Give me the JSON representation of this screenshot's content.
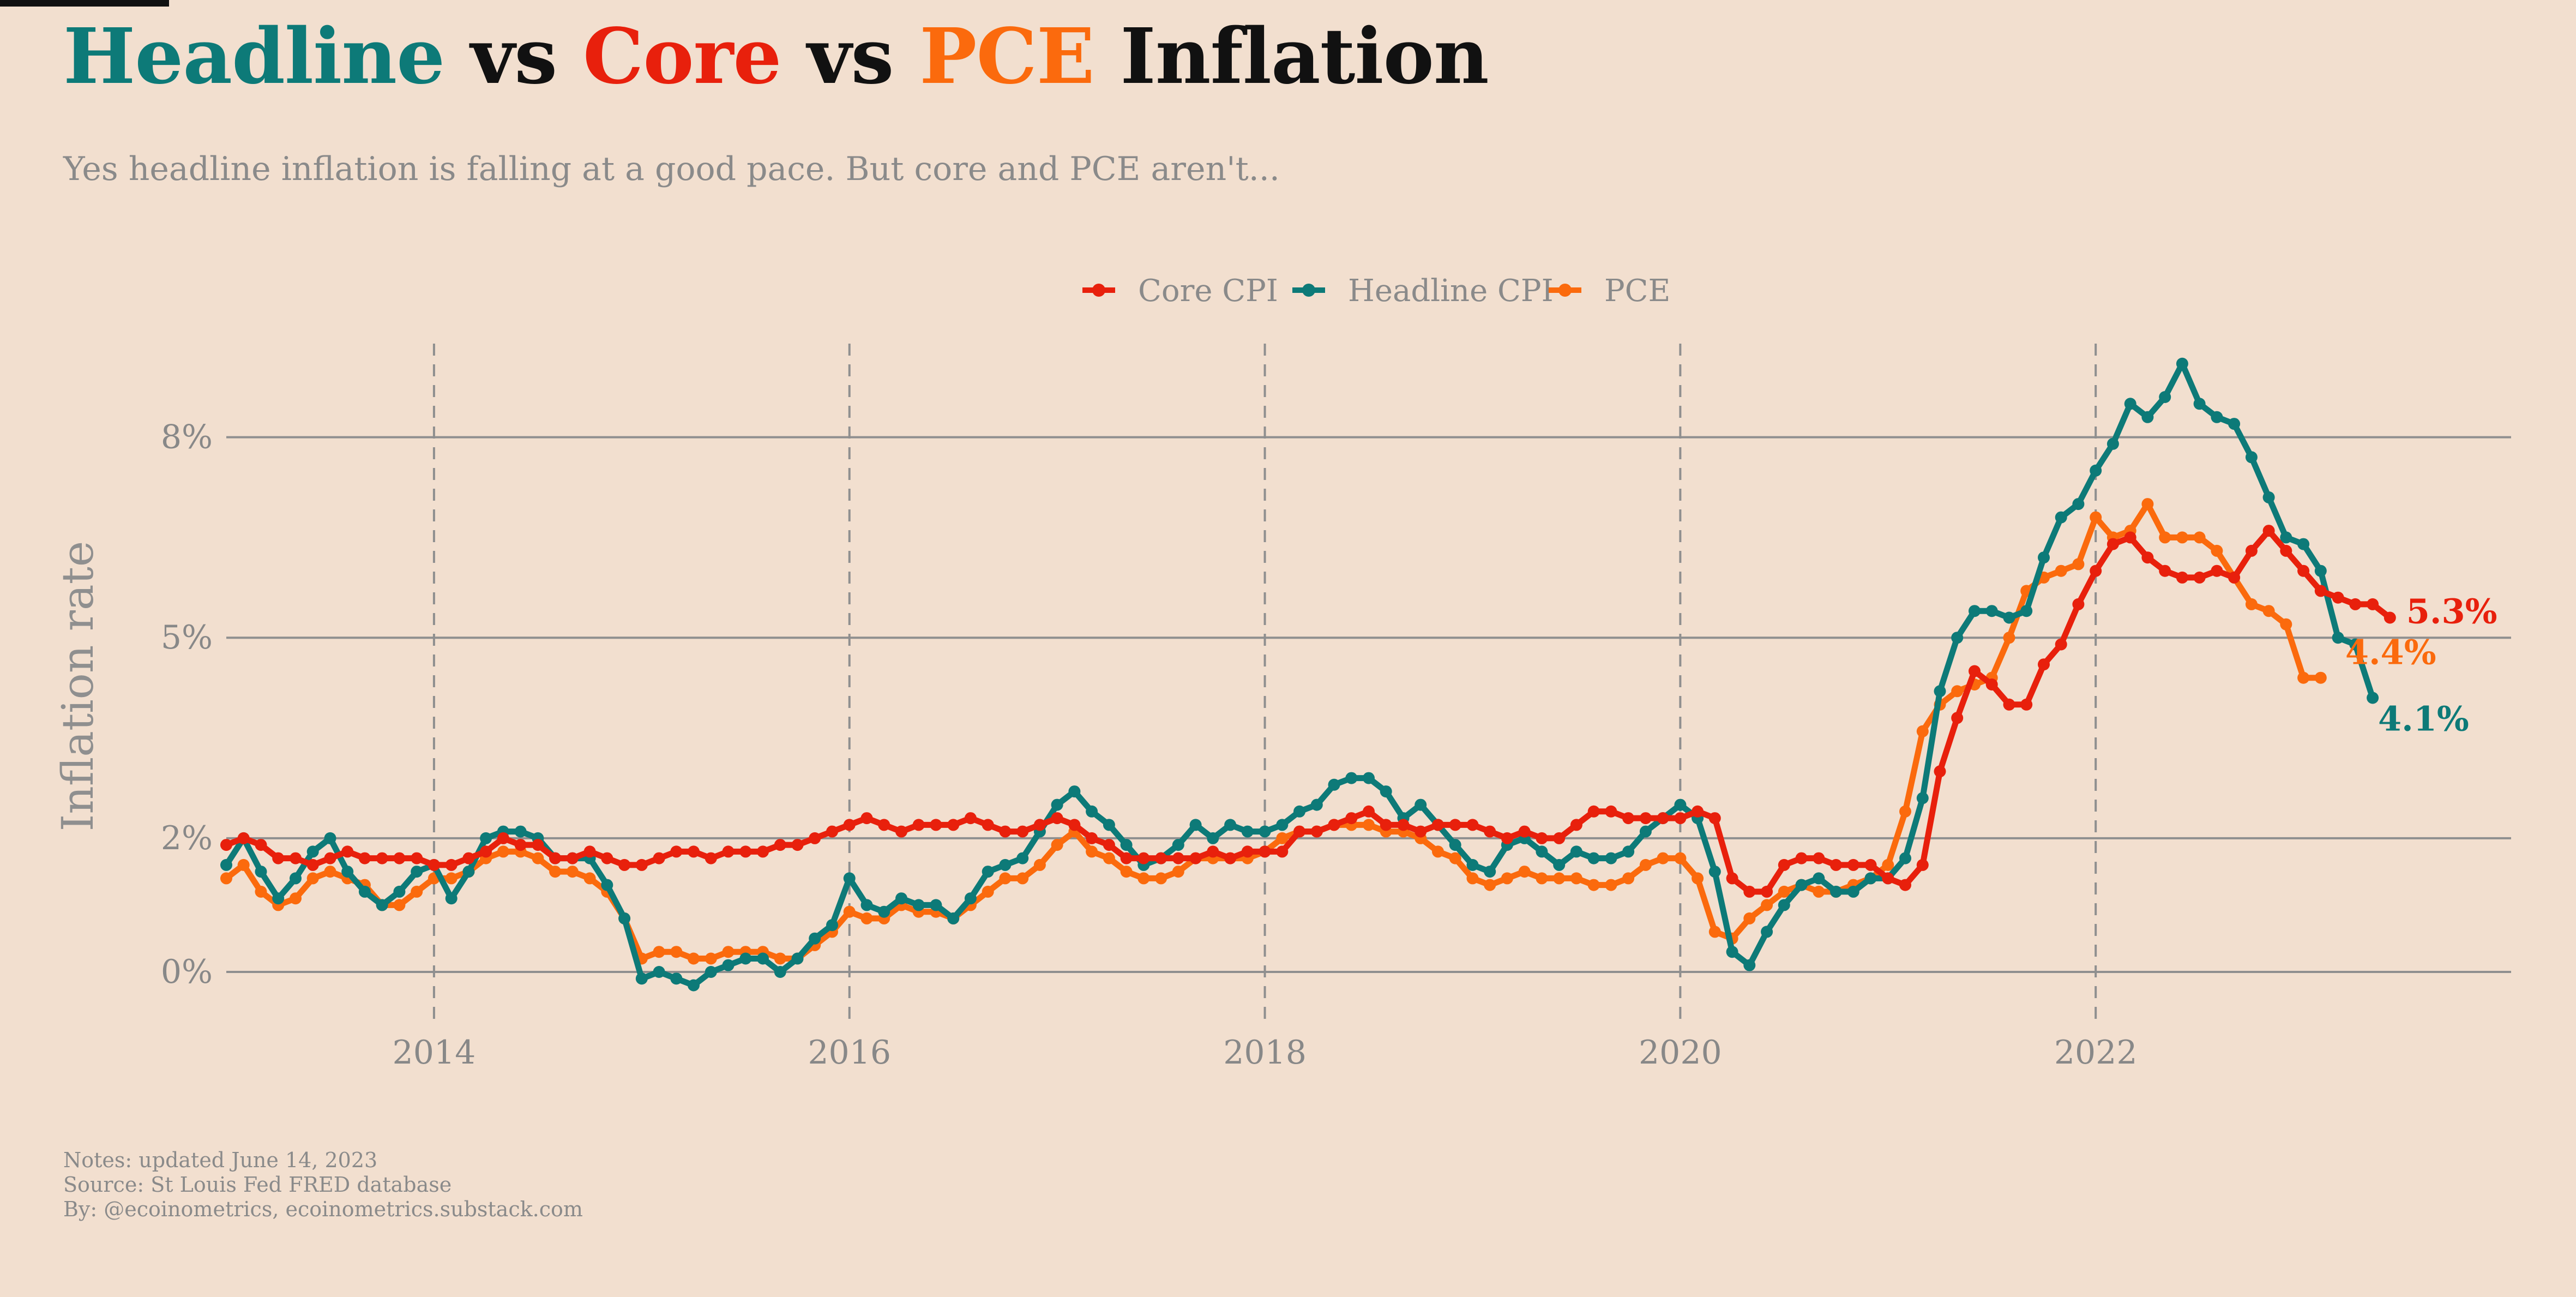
{
  "header": {
    "title_parts": [
      {
        "text": "Headline",
        "color": "#0d7a78"
      },
      {
        "text": " vs ",
        "color": "#111111"
      },
      {
        "text": "Core",
        "color": "#e8200c"
      },
      {
        "text": " vs ",
        "color": "#111111"
      },
      {
        "text": "PCE",
        "color": "#fb6a0d"
      },
      {
        "text": " Inflation",
        "color": "#111111"
      }
    ],
    "subtitle": "Yes headline inflation is falling at a good pace. But core and PCE aren't..."
  },
  "notes": [
    "Notes: updated June 14, 2023",
    "Source: St Louis Fed FRED database",
    "By: @ecoinometrics, ecoinometrics.substack.com"
  ],
  "chart_data": {
    "type": "line",
    "title": "Headline vs Core vs PCE Inflation",
    "xlabel": "",
    "ylabel": "Inflation rate",
    "x_start": "2013-01",
    "x_frequency": "monthly",
    "xlim": [
      2013.0,
      2024.0
    ],
    "ylim": [
      -0.8,
      9.4
    ],
    "x_ticks": [
      2014,
      2016,
      2018,
      2020,
      2022
    ],
    "x_tick_labels": [
      "2014",
      "2016",
      "2018",
      "2020",
      "2022"
    ],
    "y_ticks": [
      0,
      2,
      5,
      8
    ],
    "y_tick_labels": [
      "0%",
      "2%",
      "5%",
      "8%"
    ],
    "grid": {
      "horizontal": "solid",
      "vertical": "dashed"
    },
    "legend_position": "top-center",
    "series": [
      {
        "name": "Core CPI",
        "color": "#e8200c",
        "end_label": "5.3%",
        "values": [
          1.9,
          2.0,
          1.9,
          1.7,
          1.7,
          1.6,
          1.7,
          1.8,
          1.7,
          1.7,
          1.7,
          1.7,
          1.6,
          1.6,
          1.7,
          1.8,
          2.0,
          1.9,
          1.9,
          1.7,
          1.7,
          1.8,
          1.7,
          1.6,
          1.6,
          1.7,
          1.8,
          1.8,
          1.7,
          1.8,
          1.8,
          1.8,
          1.9,
          1.9,
          2.0,
          2.1,
          2.2,
          2.3,
          2.2,
          2.1,
          2.2,
          2.2,
          2.2,
          2.3,
          2.2,
          2.1,
          2.1,
          2.2,
          2.3,
          2.2,
          2.0,
          1.9,
          1.7,
          1.7,
          1.7,
          1.7,
          1.7,
          1.8,
          1.7,
          1.8,
          1.8,
          1.8,
          2.1,
          2.1,
          2.2,
          2.3,
          2.4,
          2.2,
          2.2,
          2.1,
          2.2,
          2.2,
          2.2,
          2.1,
          2.0,
          2.1,
          2.0,
          2.0,
          2.2,
          2.4,
          2.4,
          2.3,
          2.3,
          2.3,
          2.3,
          2.4,
          2.3,
          1.4,
          1.2,
          1.2,
          1.6,
          1.7,
          1.7,
          1.6,
          1.6,
          1.6,
          1.4,
          1.3,
          1.6,
          3.0,
          3.8,
          4.5,
          4.3,
          4.0,
          4.0,
          4.6,
          4.9,
          5.5,
          6.0,
          6.4,
          6.5,
          6.2,
          6.0,
          5.9,
          5.9,
          6.0,
          5.9,
          6.3,
          6.6,
          6.3,
          6.0,
          5.7,
          5.6,
          5.5,
          5.5,
          5.3
        ]
      },
      {
        "name": "Headline CPI",
        "color": "#0d7a78",
        "end_label": "4.1%",
        "values": [
          1.6,
          2.0,
          1.5,
          1.1,
          1.4,
          1.8,
          2.0,
          1.5,
          1.2,
          1.0,
          1.2,
          1.5,
          1.6,
          1.1,
          1.5,
          2.0,
          2.1,
          2.1,
          2.0,
          1.7,
          1.7,
          1.7,
          1.3,
          0.8,
          -0.1,
          0.0,
          -0.1,
          -0.2,
          0.0,
          0.1,
          0.2,
          0.2,
          0.0,
          0.2,
          0.5,
          0.7,
          1.4,
          1.0,
          0.9,
          1.1,
          1.0,
          1.0,
          0.8,
          1.1,
          1.5,
          1.6,
          1.7,
          2.1,
          2.5,
          2.7,
          2.4,
          2.2,
          1.9,
          1.6,
          1.7,
          1.9,
          2.2,
          2.0,
          2.2,
          2.1,
          2.1,
          2.2,
          2.4,
          2.5,
          2.8,
          2.9,
          2.9,
          2.7,
          2.3,
          2.5,
          2.2,
          1.9,
          1.6,
          1.5,
          1.9,
          2.0,
          1.8,
          1.6,
          1.8,
          1.7,
          1.7,
          1.8,
          2.1,
          2.3,
          2.5,
          2.3,
          1.5,
          0.3,
          0.1,
          0.6,
          1.0,
          1.3,
          1.4,
          1.2,
          1.2,
          1.4,
          1.4,
          1.7,
          2.6,
          4.2,
          5.0,
          5.4,
          5.4,
          5.3,
          5.4,
          6.2,
          6.8,
          7.0,
          7.5,
          7.9,
          8.5,
          8.3,
          8.6,
          9.1,
          8.5,
          8.3,
          8.2,
          7.7,
          7.1,
          6.5,
          6.4,
          6.0,
          5.0,
          4.9,
          4.1
        ]
      },
      {
        "name": "PCE",
        "color": "#fb6a0d",
        "end_label": "4.4%",
        "values": [
          1.4,
          1.6,
          1.2,
          1.0,
          1.1,
          1.4,
          1.5,
          1.4,
          1.3,
          1.0,
          1.0,
          1.2,
          1.4,
          1.4,
          1.5,
          1.7,
          1.8,
          1.8,
          1.7,
          1.5,
          1.5,
          1.4,
          1.2,
          0.8,
          0.2,
          0.3,
          0.3,
          0.2,
          0.2,
          0.3,
          0.3,
          0.3,
          0.2,
          0.2,
          0.4,
          0.6,
          0.9,
          0.8,
          0.8,
          1.0,
          0.9,
          0.9,
          0.8,
          1.0,
          1.2,
          1.4,
          1.4,
          1.6,
          1.9,
          2.1,
          1.8,
          1.7,
          1.5,
          1.4,
          1.4,
          1.5,
          1.7,
          1.7,
          1.7,
          1.7,
          1.8,
          2.0,
          2.1,
          2.1,
          2.2,
          2.2,
          2.2,
          2.1,
          2.1,
          2.0,
          1.8,
          1.7,
          1.4,
          1.3,
          1.4,
          1.5,
          1.4,
          1.4,
          1.4,
          1.3,
          1.3,
          1.4,
          1.6,
          1.7,
          1.7,
          1.4,
          0.6,
          0.5,
          0.8,
          1.0,
          1.2,
          1.3,
          1.2,
          1.2,
          1.3,
          1.4,
          1.6,
          2.4,
          3.6,
          4.0,
          4.2,
          4.3,
          4.4,
          5.0,
          5.7,
          5.9,
          6.0,
          6.1,
          6.8,
          6.5,
          6.6,
          7.0,
          6.5,
          6.5,
          6.5,
          6.3,
          5.9,
          5.5,
          5.4,
          5.2,
          4.4,
          4.4
        ]
      }
    ]
  }
}
